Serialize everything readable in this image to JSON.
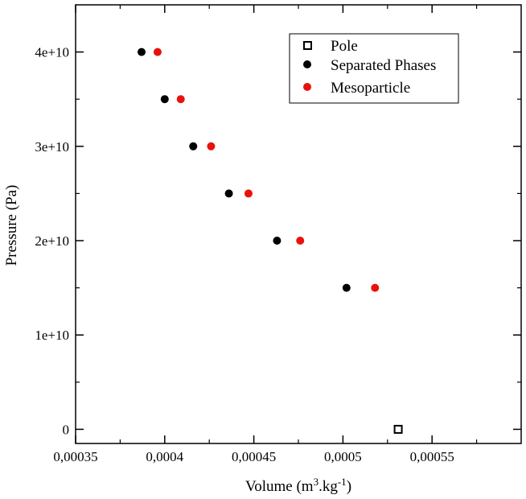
{
  "chart_data": {
    "type": "scatter",
    "xlabel": "Volume (m",
    "xlabel_sup1": "3",
    "xlabel_mid": ".kg",
    "xlabel_sup2": "-1",
    "xlabel_end": ")",
    "ylabel": "Pressure (Pa)",
    "xlim": [
      0.00035,
      0.0006
    ],
    "ylim": [
      -1500000000,
      45000000000
    ],
    "x_ticks": [
      0.00035,
      0.0004,
      0.00045,
      0.0005,
      0.00055
    ],
    "x_tick_labels": [
      "0,00035",
      "0,0004",
      "0,00045",
      "0,0005",
      "0,00055"
    ],
    "y_ticks": [
      0,
      10000000000,
      20000000000,
      30000000000,
      40000000000
    ],
    "y_tick_labels": [
      "0",
      "1e+10",
      "2e+10",
      "3e+10",
      "4e+10"
    ],
    "legend_position": "top-right",
    "series": [
      {
        "name": "Pole",
        "marker": "open-square",
        "color": "#000000",
        "points": [
          [
            0.000531,
            0
          ]
        ]
      },
      {
        "name": "Separated Phases",
        "marker": "filled-circle",
        "color": "#000000",
        "points": [
          [
            0.000387,
            40000000000
          ],
          [
            0.0004,
            35000000000
          ],
          [
            0.000416,
            30000000000
          ],
          [
            0.000436,
            25000000000
          ],
          [
            0.000463,
            20000000000
          ],
          [
            0.000502,
            15000000000
          ]
        ]
      },
      {
        "name": "Mesoparticle",
        "marker": "filled-circle",
        "color": "#e8120c",
        "points": [
          [
            0.000396,
            40000000000
          ],
          [
            0.000409,
            35000000000
          ],
          [
            0.000426,
            30000000000
          ],
          [
            0.000447,
            25000000000
          ],
          [
            0.000476,
            20000000000
          ],
          [
            0.000518,
            15000000000
          ]
        ]
      }
    ]
  }
}
